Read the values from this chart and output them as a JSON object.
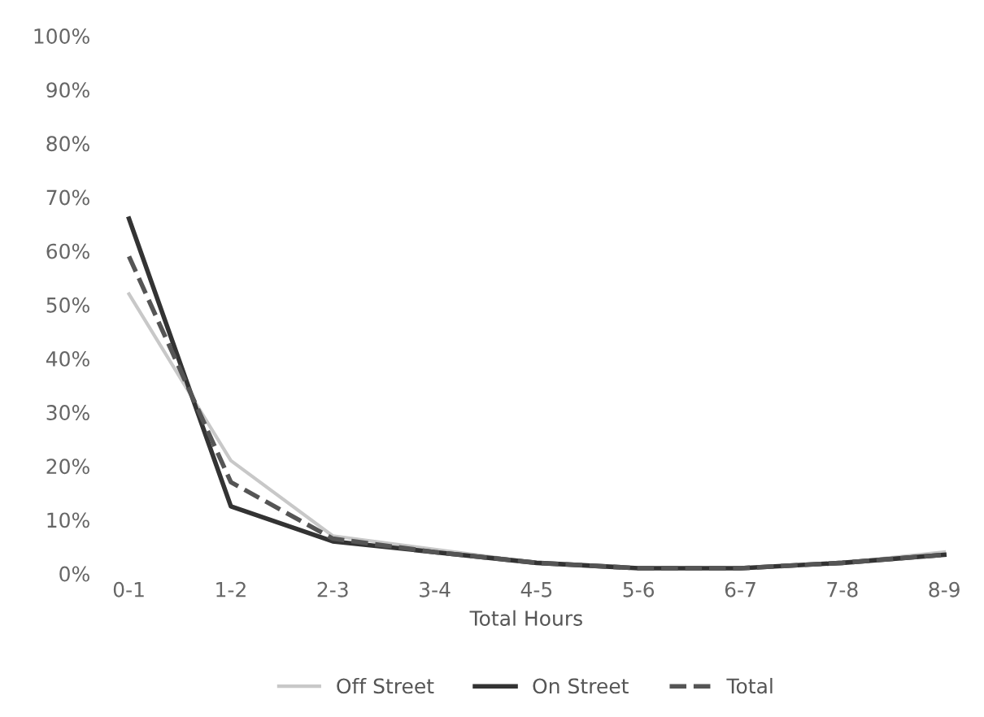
{
  "chart_data": {
    "type": "line",
    "xlabel": "Total Hours",
    "categories": [
      "0-1",
      "1-2",
      "2-3",
      "3-4",
      "4-5",
      "5-6",
      "6-7",
      "7-8",
      "8-9"
    ],
    "ylim": [
      0,
      100
    ],
    "yticks": [
      {
        "value": 0,
        "label": "0%"
      },
      {
        "value": 10,
        "label": "10%"
      },
      {
        "value": 20,
        "label": "20%"
      },
      {
        "value": 30,
        "label": "30%"
      },
      {
        "value": 40,
        "label": "40%"
      },
      {
        "value": 50,
        "label": "50%"
      },
      {
        "value": 60,
        "label": "60%"
      },
      {
        "value": 70,
        "label": "70%"
      },
      {
        "value": 80,
        "label": "80%"
      },
      {
        "value": 90,
        "label": "90%"
      },
      {
        "value": 100,
        "label": "100%"
      }
    ],
    "grid": false,
    "legend": "bottom",
    "marker": "none",
    "series": [
      {
        "name": "Off Street",
        "color": "#c8c8c8",
        "line_style": "solid",
        "values": [
          52,
          21,
          7,
          4.5,
          2,
          1,
          1,
          2,
          4
        ]
      },
      {
        "name": "On Street",
        "color": "#333333",
        "line_style": "solid",
        "values": [
          66,
          12.5,
          6,
          4,
          2,
          1,
          1,
          2,
          3.5
        ]
      },
      {
        "name": "Total",
        "color": "#555555",
        "line_style": "dashed",
        "values": [
          59,
          17,
          6.5,
          4,
          2,
          1,
          1,
          2,
          3.5
        ]
      }
    ]
  }
}
